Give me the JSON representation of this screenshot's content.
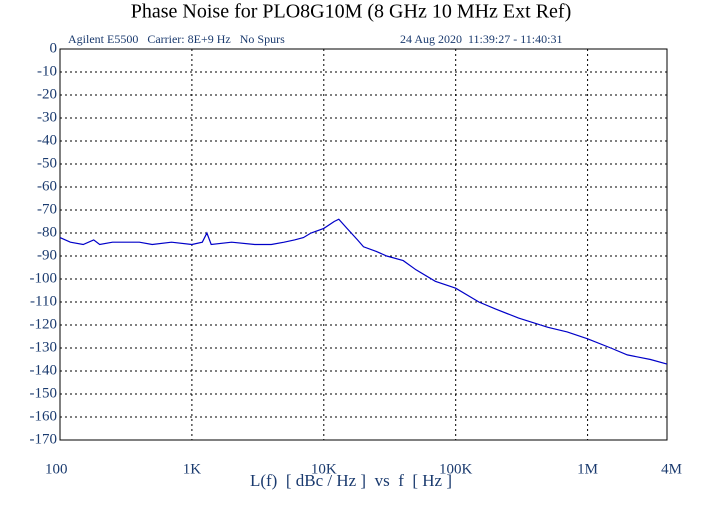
{
  "chart_data": {
    "type": "line",
    "title": "Phase Noise for PLO8G10M (8 GHz 10 MHz Ext Ref)",
    "header_left": "Agilent E5500   Carrier: 8E+9 Hz   No Spurs",
    "header_right": "24 Aug 2020  11:39:27 - 11:40:31",
    "xlabel": "L(f)  [ dBc / Hz ]  vs  f  [ Hz ]",
    "xscale": "log",
    "grid": true,
    "xlim": [
      100,
      4000000
    ],
    "xticks": [
      100,
      {
        "value": 1000,
        "label": "1K"
      },
      {
        "value": 10000,
        "label": "10K"
      },
      {
        "value": 100000,
        "label": "100K"
      },
      {
        "value": 1000000,
        "label": "1M"
      },
      {
        "value": 4000000,
        "label": "4M"
      }
    ],
    "ylim": [
      -170,
      0
    ],
    "yticks": [
      0,
      -10,
      -20,
      -30,
      -40,
      -50,
      -60,
      -70,
      -80,
      -90,
      -100,
      -110,
      -120,
      -130,
      -140,
      -150,
      -160,
      -170
    ],
    "x": [
      100,
      120,
      150,
      180,
      200,
      250,
      300,
      400,
      500,
      700,
      1000,
      1200,
      1300,
      1400,
      2000,
      3000,
      4000,
      5000,
      6000,
      7000,
      8000,
      10000,
      12000,
      13000,
      15000,
      18000,
      20000,
      25000,
      30000,
      40000,
      50000,
      70000,
      100000,
      150000,
      200000,
      300000,
      500000,
      700000,
      1000000,
      1500000,
      2000000,
      3000000,
      4000000
    ],
    "series": [
      {
        "color": "#0000c8",
        "values": [
          -82,
          -84,
          -85,
          -83,
          -85,
          -84,
          -84,
          -84,
          -85,
          -84,
          -85,
          -84,
          -80,
          -85,
          -84,
          -85,
          -85,
          -84,
          -83,
          -82,
          -80,
          -78,
          -75,
          -74,
          -78,
          -83,
          -86,
          -88,
          -90,
          -92,
          -96,
          -101,
          -104,
          -110,
          -113,
          -117,
          -121,
          -123,
          -126,
          -130,
          -133,
          -135,
          -137
        ]
      }
    ]
  }
}
